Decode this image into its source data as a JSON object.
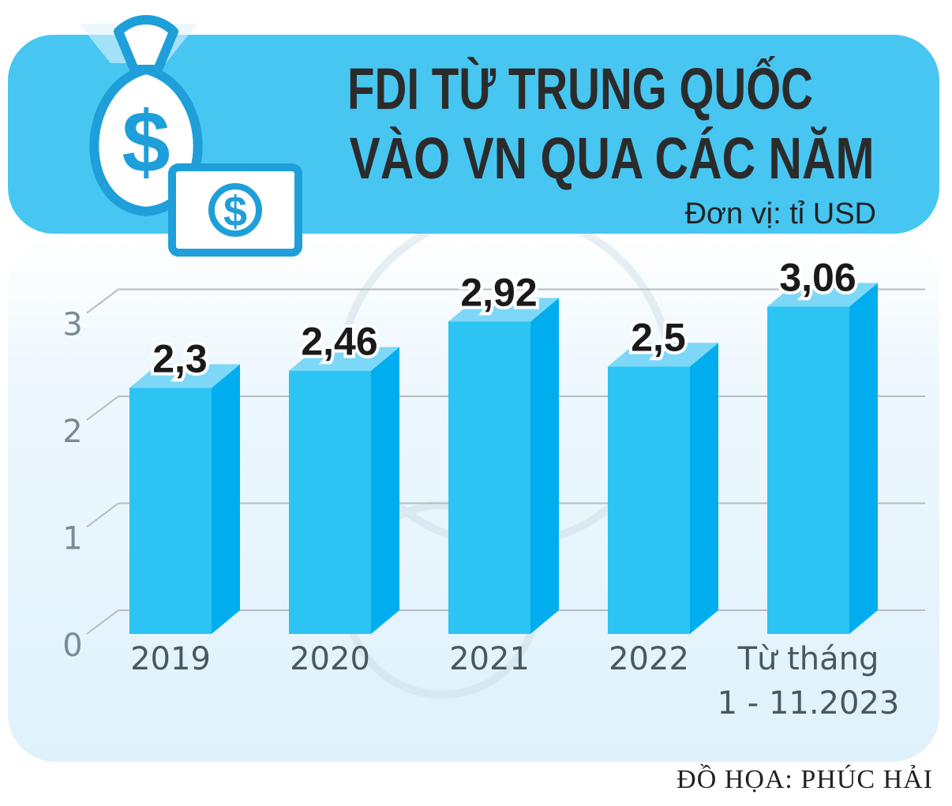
{
  "header": {
    "title_line1": "FDI TỪ TRUNG QUỐC",
    "title_line2": "VÀO VN QUA CÁC NĂM",
    "unit": "Đơn vị: tỉ USD"
  },
  "credit": "ĐỒ HỌA: PHÚC HẢI",
  "colors": {
    "header_band": "#47c6f1",
    "bar_front": "#2cc4f2",
    "bar_side": "#00aeef",
    "bar_top": "#7dd8f7",
    "panel": "#e8f5fc"
  },
  "icons": [
    "money-bag-icon",
    "banknote-icon"
  ],
  "chart_data": {
    "type": "bar",
    "categories": [
      "2019",
      "2020",
      "2021",
      "2022",
      "Từ tháng 1 - 11.2023"
    ],
    "category_lines": [
      [
        "2019"
      ],
      [
        "2020"
      ],
      [
        "2021"
      ],
      [
        "2022"
      ],
      [
        "Từ tháng",
        "1 - 11.2023"
      ]
    ],
    "values": [
      2.3,
      2.46,
      2.92,
      2.5,
      3.06
    ],
    "value_labels": [
      "2,3",
      "2,46",
      "2,92",
      "2,5",
      "3,06"
    ],
    "y_ticks": [
      "0",
      "1",
      "2",
      "3"
    ],
    "ylim": [
      0,
      3
    ],
    "grid": true,
    "title": "FDI TỪ TRUNG QUỐC VÀO VN QUA CÁC NĂM",
    "ylabel": "Đơn vị: tỉ USD",
    "xlabel": ""
  }
}
